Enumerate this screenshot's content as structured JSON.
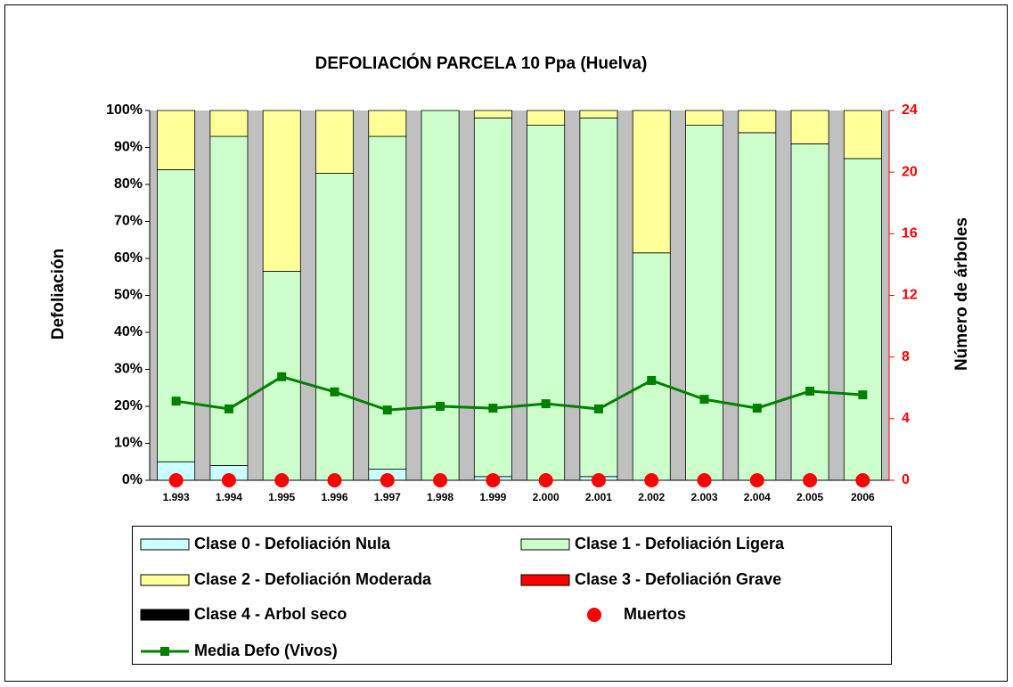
{
  "chart_data": {
    "type": "bar",
    "title": "DEFOLIACIÓN PARCELA 10 Ppa (Huelva)",
    "y_label": "Defoliación",
    "y2_label": "Número de árboles",
    "categories": [
      "1.993",
      "1.994",
      "1.995",
      "1.996",
      "1.997",
      "1.998",
      "1.999",
      "2.000",
      "2.001",
      "2.002",
      "2.003",
      "2.004",
      "2.005",
      "2006"
    ],
    "ylim": [
      0,
      100
    ],
    "yticks": [
      {
        "value": 0,
        "label": "0%"
      },
      {
        "value": 10,
        "label": "10%"
      },
      {
        "value": 20,
        "label": "20%"
      },
      {
        "value": 30,
        "label": "30%"
      },
      {
        "value": 40,
        "label": "40%"
      },
      {
        "value": 50,
        "label": "50%"
      },
      {
        "value": 60,
        "label": "60%"
      },
      {
        "value": 70,
        "label": "70%"
      },
      {
        "value": 80,
        "label": "80%"
      },
      {
        "value": 90,
        "label": "90%"
      },
      {
        "value": 100,
        "label": "100%"
      }
    ],
    "y2lim": [
      0,
      24
    ],
    "y2ticks": [
      0,
      4,
      8,
      12,
      16,
      20,
      24
    ],
    "y2_color": "#ff0000",
    "stacked": true,
    "background": "#c0c0c0",
    "series": [
      {
        "name": "Clase 0 - Defoliación Nula",
        "type": "bar",
        "color": "#ccffff",
        "values": [
          5,
          4,
          0,
          0,
          3,
          0,
          1,
          0,
          1,
          0,
          0,
          0,
          0,
          0
        ]
      },
      {
        "name": "Clase 1 - Defoliación Ligera",
        "type": "bar",
        "color": "#ccffcc",
        "values": [
          79,
          89,
          56.5,
          83,
          90,
          100,
          97,
          96,
          97,
          61.5,
          96,
          94,
          91,
          87
        ]
      },
      {
        "name": "Clase 2 - Defoliación Moderada",
        "type": "bar",
        "color": "#ffff99",
        "values": [
          16,
          7,
          43.5,
          17,
          7,
          0,
          2,
          4,
          2,
          38.5,
          4,
          6,
          9,
          13
        ]
      },
      {
        "name": "Clase 3 - Defoliación Grave",
        "type": "bar",
        "color": "#ff0000",
        "values": [
          0,
          0,
          0,
          0,
          0,
          0,
          0,
          0,
          0,
          0,
          0,
          0,
          0,
          0
        ]
      },
      {
        "name": "Clase 4 - Arbol seco",
        "type": "bar",
        "color": "#000000",
        "values": [
          0,
          0,
          0,
          0,
          0,
          0,
          0,
          0,
          0,
          0,
          0,
          0,
          0,
          0
        ]
      },
      {
        "name": "Muertos",
        "type": "scatter",
        "axis": "y2",
        "color": "#ff0000",
        "values": [
          0,
          0,
          0,
          0,
          0,
          0,
          0,
          0,
          0,
          0,
          0,
          0,
          0,
          0
        ]
      },
      {
        "name": "Media Defo (Vivos)",
        "type": "line",
        "color": "#008000",
        "values": [
          21.4,
          19.3,
          28,
          23.9,
          19,
          20,
          19.5,
          20.7,
          19.3,
          27,
          21.9,
          19.5,
          24.1,
          23.1
        ]
      }
    ]
  }
}
